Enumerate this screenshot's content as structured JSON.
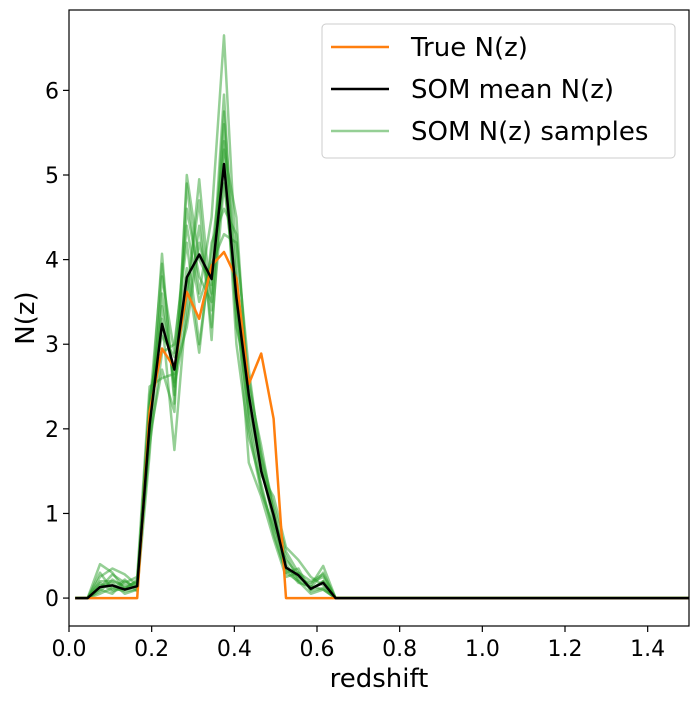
{
  "chart_data": {
    "type": "line",
    "title": "",
    "xlabel": "redshift",
    "ylabel": "N(z)",
    "xlim": [
      0.0,
      1.5
    ],
    "ylim": [
      -0.33,
      6.95
    ],
    "xticks": [
      0.0,
      0.2,
      0.4,
      0.6,
      0.8,
      1.0,
      1.2,
      1.4
    ],
    "xtick_labels": [
      "0.0",
      "0.2",
      "0.4",
      "0.6",
      "0.8",
      "1.0",
      "1.2",
      "1.4"
    ],
    "yticks": [
      0,
      1,
      2,
      3,
      4,
      5,
      6
    ],
    "ytick_labels": [
      "0",
      "1",
      "2",
      "3",
      "4",
      "5",
      "6"
    ],
    "grid": false,
    "legend_position": "top-right",
    "x": [
      0.015,
      0.045,
      0.075,
      0.105,
      0.135,
      0.165,
      0.195,
      0.225,
      0.255,
      0.285,
      0.315,
      0.345,
      0.375,
      0.405,
      0.435,
      0.465,
      0.495,
      0.525,
      0.555,
      0.585,
      0.615,
      0.645,
      0.675,
      1.5
    ],
    "series": [
      {
        "name": "True N(z)",
        "color": "#ff7f0e",
        "values": [
          0,
          0,
          0,
          0,
          0,
          0,
          2.2,
          2.95,
          2.72,
          3.62,
          3.3,
          3.93,
          4.09,
          3.78,
          2.53,
          2.89,
          2.12,
          0,
          0,
          0,
          0,
          0,
          0,
          0
        ]
      },
      {
        "name": "SOM mean N(z)",
        "color": "#000000",
        "values": [
          0,
          0,
          0.13,
          0.15,
          0.1,
          0.14,
          2.05,
          3.24,
          2.7,
          3.79,
          4.06,
          3.77,
          5.13,
          3.55,
          2.4,
          1.5,
          0.98,
          0.36,
          0.27,
          0.11,
          0.18,
          0,
          0,
          0
        ]
      },
      {
        "name": "SOM N(z) samples",
        "color": "#2ca02c",
        "samples": [
          [
            0,
            0,
            0.05,
            0.12,
            0.08,
            0.1,
            2.0,
            4.07,
            2.3,
            4.9,
            3.6,
            4.5,
            6.65,
            3.9,
            2.1,
            1.3,
            0.8,
            0.3,
            0.2,
            0.05,
            0.1,
            0,
            0,
            0
          ],
          [
            0,
            0,
            0.2,
            0.2,
            0.15,
            0.18,
            2.3,
            3.3,
            1.75,
            3.5,
            4.95,
            3.4,
            5.6,
            3.2,
            2.6,
            1.7,
            1.1,
            0.55,
            0.3,
            0.2,
            0.28,
            0,
            0,
            0
          ],
          [
            0,
            0,
            0.4,
            0.3,
            0.1,
            0.22,
            1.8,
            2.9,
            3.0,
            4.2,
            3.0,
            4.1,
            5.3,
            4.5,
            2.3,
            1.55,
            0.9,
            0.35,
            0.25,
            0.15,
            0.38,
            0,
            0,
            0
          ],
          [
            0,
            0,
            0.1,
            0.05,
            0.2,
            0.12,
            2.15,
            3.6,
            2.5,
            3.3,
            4.4,
            3.2,
            4.9,
            3.6,
            1.6,
            1.2,
            0.7,
            0.25,
            0.3,
            0.1,
            0.2,
            0,
            0,
            0
          ],
          [
            0,
            0,
            0.25,
            0.35,
            0.28,
            0.15,
            1.9,
            2.7,
            2.2,
            5.0,
            4.0,
            3.7,
            5.95,
            3.3,
            2.2,
            1.45,
            1.2,
            0.6,
            0.45,
            0.25,
            0.15,
            0,
            0,
            0
          ],
          [
            0,
            0,
            0.15,
            0.18,
            0.05,
            0.1,
            2.4,
            3.1,
            2.85,
            3.9,
            2.9,
            4.2,
            4.6,
            4.3,
            2.5,
            1.8,
            1.0,
            0.4,
            0.2,
            0.12,
            0.3,
            0,
            0,
            0
          ],
          [
            0,
            0,
            0.08,
            0.22,
            0.12,
            0.2,
            2.0,
            3.45,
            2.55,
            3.6,
            4.7,
            3.05,
            5.4,
            3.0,
            1.9,
            1.35,
            0.75,
            0.3,
            0.35,
            0.08,
            0.12,
            0,
            0,
            0
          ],
          [
            0,
            0,
            0.3,
            0.1,
            0.22,
            0.08,
            1.7,
            3.8,
            2.9,
            4.4,
            3.5,
            3.95,
            4.3,
            4.2,
            2.7,
            1.6,
            0.95,
            0.5,
            0.22,
            0.18,
            0.25,
            0,
            0,
            0
          ],
          [
            0,
            0,
            0.12,
            0.28,
            0.18,
            0.25,
            2.5,
            2.6,
            2.65,
            3.2,
            4.2,
            3.6,
            5.75,
            3.7,
            2.0,
            1.25,
            0.85,
            0.45,
            0.28,
            0.1,
            0.2,
            0,
            0,
            0
          ],
          [
            0,
            0,
            0.18,
            0.08,
            0.12,
            0.16,
            2.25,
            3.95,
            2.4,
            4.6,
            3.8,
            3.5,
            5.0,
            3.45,
            2.35,
            1.65,
            1.05,
            0.35,
            0.18,
            0.14,
            0.1,
            0,
            0,
            0
          ]
        ]
      }
    ]
  }
}
